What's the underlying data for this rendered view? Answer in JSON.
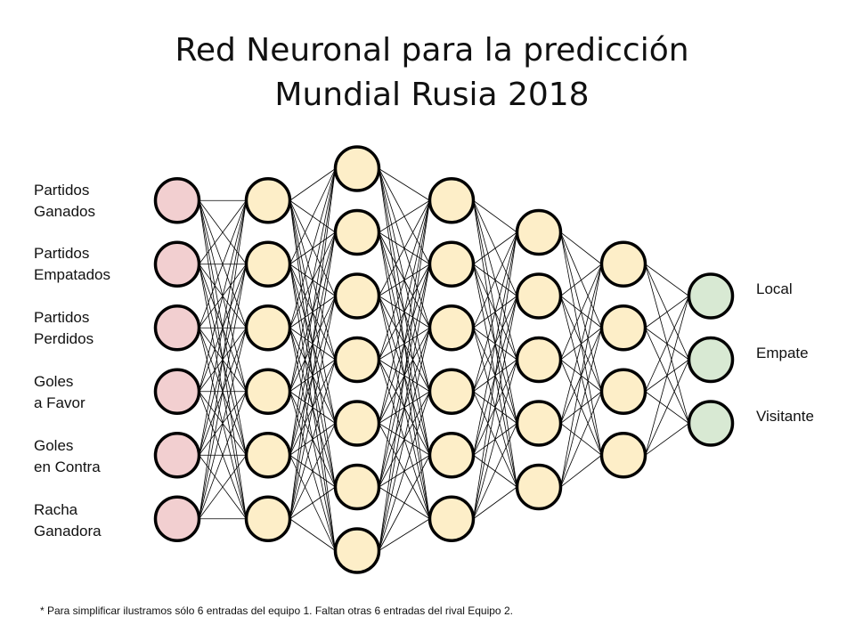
{
  "title": {
    "line1": "Red Neuronal para la predicción",
    "line2": "Mundial Rusia 2018"
  },
  "inputs": [
    {
      "line1": "Partidos",
      "line2": "Ganados"
    },
    {
      "line1": "Partidos",
      "line2": "Empatados"
    },
    {
      "line1": "Partidos",
      "line2": "Perdidos"
    },
    {
      "line1": "Goles",
      "line2": "a Favor"
    },
    {
      "line1": "Goles",
      "line2": "en Contra"
    },
    {
      "line1": "Racha",
      "line2": "Ganadora"
    }
  ],
  "outputs": [
    "Local",
    "Empate",
    "Visitante"
  ],
  "layers": {
    "sizes": [
      6,
      6,
      7,
      6,
      5,
      4,
      3
    ],
    "colors": {
      "input_fill": "#f2cfd0",
      "hidden_fill": "#fdeec8",
      "output_fill": "#d8e9d3",
      "stroke": "#000000",
      "edge": "#000000"
    }
  },
  "footnote": "* Para simplificar ilustramos sólo 6 entradas del equipo 1. Faltan otras 6 entradas del rival Equipo 2."
}
